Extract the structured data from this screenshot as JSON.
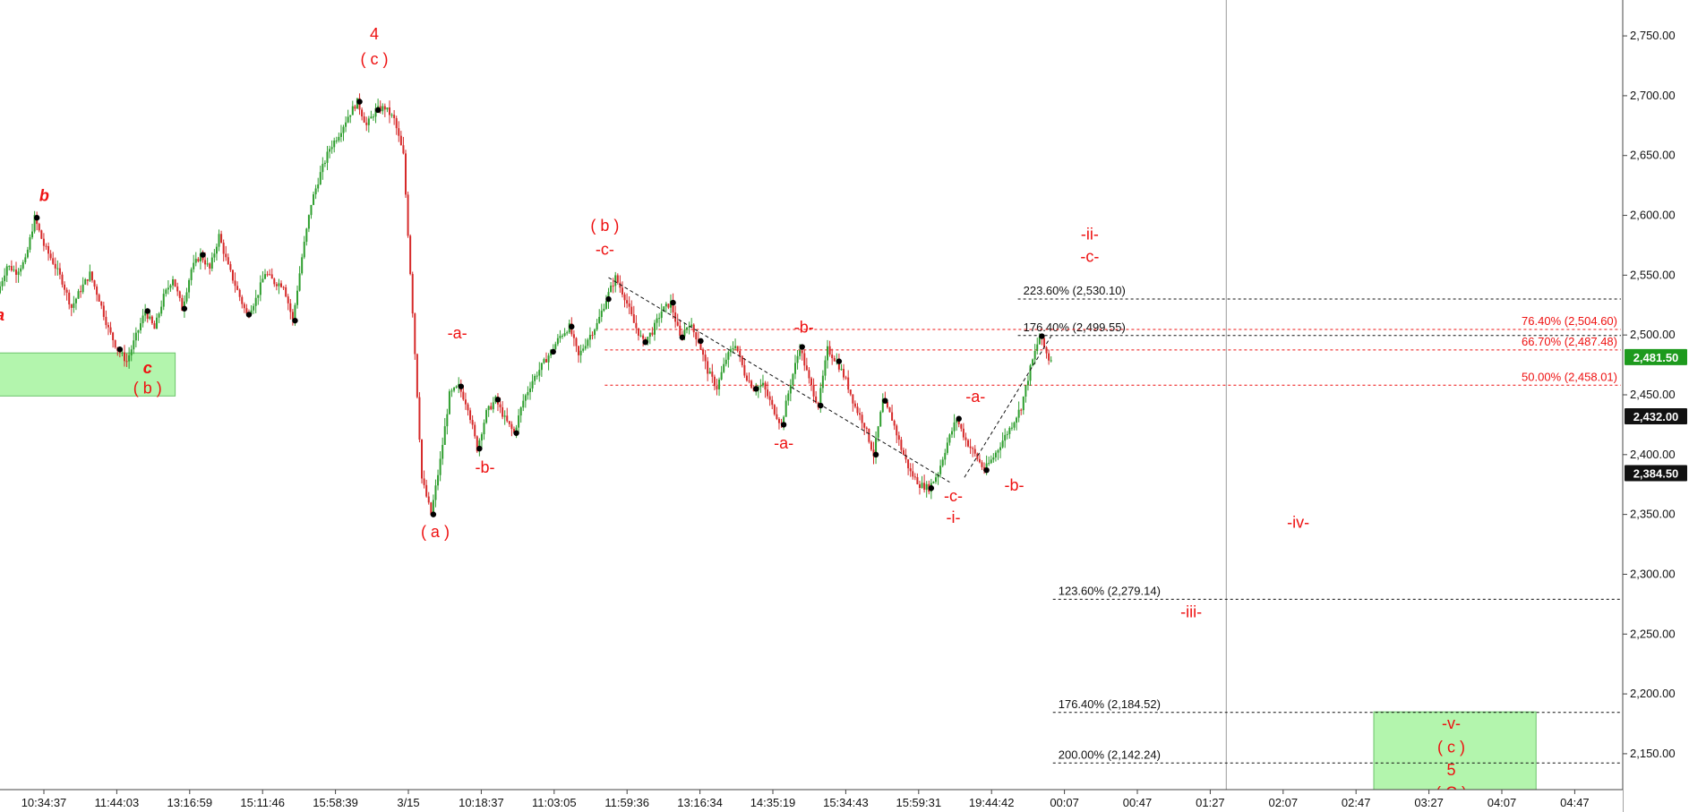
{
  "chart_data": {
    "type": "candlestick",
    "title": "",
    "xlabel": "",
    "ylabel": "",
    "ylim": [
      2120,
      2780
    ],
    "grid": false,
    "colors": {
      "up": "#2e9e2e",
      "down": "#d62a2a",
      "wave_label": "#ee1111",
      "fib_red": "#ee1111",
      "fib_black": "#111111",
      "zone": "#b3f5ad"
    },
    "x_tick_labels": [
      "10:34:37",
      "11:44:03",
      "13:16:59",
      "15:11:46",
      "15:58:39",
      "3/15",
      "10:18:37",
      "11:03:05",
      "11:59:36",
      "13:16:34",
      "14:35:19",
      "15:34:43",
      "15:59:31",
      "19:44:42",
      "00:07",
      "00:47",
      "01:27",
      "02:07",
      "02:47",
      "03:27",
      "04:07",
      "04:47"
    ],
    "y_ticks": [
      {
        "value": 2150,
        "label": "2,150.00"
      },
      {
        "value": 2200,
        "label": "2,200.00"
      },
      {
        "value": 2250,
        "label": "2,250.00"
      },
      {
        "value": 2300,
        "label": "2,300.00"
      },
      {
        "value": 2350,
        "label": "2,350.00"
      },
      {
        "value": 2400,
        "label": "2,400.00"
      },
      {
        "value": 2450,
        "label": "2,450.00"
      },
      {
        "value": 2500,
        "label": "2,500.00"
      },
      {
        "value": 2550,
        "label": "2,550.00"
      },
      {
        "value": 2600,
        "label": "2,600.00"
      },
      {
        "value": 2650,
        "label": "2,650.00"
      },
      {
        "value": 2700,
        "label": "2,700.00"
      },
      {
        "value": 2750,
        "label": "2,750.00"
      }
    ],
    "price_tags": [
      {
        "value": 2481.5,
        "label": "2,481.50",
        "color": "#1d9a1d"
      },
      {
        "value": 2432.0,
        "label": "2,432.00",
        "color": "#111111"
      },
      {
        "value": 2384.5,
        "label": "2,384.50",
        "color": "#111111"
      }
    ],
    "price_path": [
      [
        0,
        2535
      ],
      [
        0.5,
        2558
      ],
      [
        1,
        2553
      ],
      [
        1.5,
        2562
      ],
      [
        2,
        2598
      ],
      [
        2.5,
        2575
      ],
      [
        3,
        2561
      ],
      [
        3.5,
        2545
      ],
      [
        4,
        2523
      ],
      [
        4.5,
        2538
      ],
      [
        5,
        2551
      ],
      [
        5.5,
        2530
      ],
      [
        6,
        2505
      ],
      [
        6.5,
        2488
      ],
      [
        7,
        2478
      ],
      [
        7.5,
        2499
      ],
      [
        8,
        2520
      ],
      [
        8.5,
        2505
      ],
      [
        9,
        2532
      ],
      [
        9.5,
        2548
      ],
      [
        10,
        2522
      ],
      [
        10.5,
        2555
      ],
      [
        11,
        2567
      ],
      [
        11.5,
        2555
      ],
      [
        12,
        2583
      ],
      [
        12.5,
        2557
      ],
      [
        13,
        2537
      ],
      [
        13.5,
        2517
      ],
      [
        14,
        2530
      ],
      [
        14.5,
        2552
      ],
      [
        15,
        2544
      ],
      [
        15.5,
        2542
      ],
      [
        16,
        2512
      ],
      [
        16.5,
        2565
      ],
      [
        17,
        2610
      ],
      [
        17.5,
        2635
      ],
      [
        18,
        2656
      ],
      [
        18.5,
        2668
      ],
      [
        19,
        2683
      ],
      [
        19.5,
        2695
      ],
      [
        20,
        2675
      ],
      [
        20.5,
        2688
      ],
      [
        21,
        2690
      ],
      [
        21.5,
        2680
      ],
      [
        22,
        2650
      ],
      [
        22.5,
        2520
      ],
      [
        23,
        2380
      ],
      [
        23.5,
        2350
      ],
      [
        24,
        2395
      ],
      [
        24.5,
        2450
      ],
      [
        25,
        2457
      ],
      [
        25.5,
        2440
      ],
      [
        26,
        2405
      ],
      [
        26.5,
        2435
      ],
      [
        27,
        2446
      ],
      [
        27.5,
        2430
      ],
      [
        28,
        2418
      ],
      [
        28.5,
        2445
      ],
      [
        29,
        2462
      ],
      [
        29.5,
        2474
      ],
      [
        30,
        2486
      ],
      [
        30.5,
        2499
      ],
      [
        31,
        2507
      ],
      [
        31.5,
        2482
      ],
      [
        32,
        2497
      ],
      [
        32.5,
        2509
      ],
      [
        33,
        2530
      ],
      [
        33.5,
        2548
      ],
      [
        34,
        2532
      ],
      [
        34.5,
        2510
      ],
      [
        35,
        2494
      ],
      [
        35.5,
        2503
      ],
      [
        36,
        2520
      ],
      [
        36.5,
        2527
      ],
      [
        37,
        2498
      ],
      [
        37.5,
        2510
      ],
      [
        38,
        2495
      ],
      [
        38.5,
        2470
      ],
      [
        39,
        2456
      ],
      [
        39.5,
        2480
      ],
      [
        40,
        2493
      ],
      [
        40.5,
        2468
      ],
      [
        41,
        2455
      ],
      [
        41.5,
        2458
      ],
      [
        42,
        2440
      ],
      [
        42.5,
        2425
      ],
      [
        43,
        2460
      ],
      [
        43.5,
        2490
      ],
      [
        44,
        2462
      ],
      [
        44.5,
        2441
      ],
      [
        45,
        2488
      ],
      [
        45.5,
        2478
      ],
      [
        46,
        2462
      ],
      [
        46.5,
        2440
      ],
      [
        47,
        2425
      ],
      [
        47.5,
        2400
      ],
      [
        48,
        2445
      ],
      [
        48.5,
        2430
      ],
      [
        49,
        2405
      ],
      [
        49.5,
        2385
      ],
      [
        50,
        2375
      ],
      [
        50.5,
        2372
      ],
      [
        51,
        2385
      ],
      [
        51.5,
        2410
      ],
      [
        52,
        2430
      ],
      [
        52.5,
        2412
      ],
      [
        53,
        2400
      ],
      [
        53.5,
        2387
      ],
      [
        54,
        2398
      ],
      [
        54.5,
        2412
      ],
      [
        55,
        2425
      ],
      [
        55.5,
        2440
      ],
      [
        56,
        2472
      ],
      [
        56.5,
        2499
      ],
      [
        57,
        2480
      ]
    ],
    "wave_labels": [
      {
        "text": "a",
        "x": 0,
        "y": 2512,
        "style": "italic"
      },
      {
        "text": "b",
        "x": 2.4,
        "y": 2612,
        "style": "italic"
      },
      {
        "text": "c",
        "x": 8,
        "y": 2468,
        "style": "italic"
      },
      {
        "text": "( b )",
        "x": 8,
        "y": 2451,
        "style": "normal"
      },
      {
        "text": "4",
        "x": 20.3,
        "y": 2747,
        "style": "normal"
      },
      {
        "text": "( c )",
        "x": 20.3,
        "y": 2726,
        "style": "normal"
      },
      {
        "text": "-a-",
        "x": 24.8,
        "y": 2497,
        "style": "normal"
      },
      {
        "text": "-b-",
        "x": 26.3,
        "y": 2385,
        "style": "normal"
      },
      {
        "text": "( a )",
        "x": 23.6,
        "y": 2331,
        "style": "normal"
      },
      {
        "text": "( b )",
        "x": 32.8,
        "y": 2587,
        "style": "normal"
      },
      {
        "text": "-c-",
        "x": 32.8,
        "y": 2567,
        "style": "normal"
      },
      {
        "text": "-b-",
        "x": 43.6,
        "y": 2502,
        "style": "normal"
      },
      {
        "text": "-a-",
        "x": 42.5,
        "y": 2405,
        "style": "normal"
      },
      {
        "text": "-c-",
        "x": 51.7,
        "y": 2361,
        "style": "normal"
      },
      {
        "text": "-i-",
        "x": 51.7,
        "y": 2343,
        "style": "normal"
      },
      {
        "text": "-a-",
        "x": 52.9,
        "y": 2444,
        "style": "normal"
      },
      {
        "text": "-b-",
        "x": 55,
        "y": 2370,
        "style": "normal"
      },
      {
        "text": "-ii-",
        "x": 59.1,
        "y": 2580,
        "style": "normal"
      },
      {
        "text": "-c-",
        "x": 59.1,
        "y": 2561,
        "style": "normal"
      },
      {
        "text": "-iv-",
        "x": 70.4,
        "y": 2339,
        "style": "normal"
      },
      {
        "text": "-iii-",
        "x": 64.6,
        "y": 2264,
        "style": "normal"
      },
      {
        "text": "-v-",
        "x": 78.7,
        "y": 2171,
        "style": "normal"
      },
      {
        "text": "( c )",
        "x": 78.7,
        "y": 2151,
        "style": "normal"
      },
      {
        "text": "5",
        "x": 78.7,
        "y": 2132,
        "style": "normal"
      },
      {
        "text": "( C )",
        "x": 78.7,
        "y": 2113,
        "style": "normal"
      }
    ],
    "fib_levels": [
      {
        "label": "223.60% (2,530.10)",
        "value": 2530.1,
        "x_start": 55.2,
        "color": "black",
        "label_side": "left"
      },
      {
        "label": "176.40% (2,499.55)",
        "value": 2499.55,
        "x_start": 55.2,
        "color": "black",
        "label_side": "left"
      },
      {
        "label": "76.40% (2,504.60)",
        "value": 2504.6,
        "x_start": 32.8,
        "color": "red",
        "label_side": "right"
      },
      {
        "label": "66.70% (2,487.48)",
        "value": 2487.48,
        "x_start": 32.8,
        "color": "red",
        "label_side": "right"
      },
      {
        "label": "50.00% (2,458.01)",
        "value": 2458.01,
        "x_start": 32.8,
        "color": "red",
        "label_side": "right"
      },
      {
        "label": "123.60% (2,279.14)",
        "value": 2279.14,
        "x_start": 57.1,
        "color": "black",
        "label_side": "left"
      },
      {
        "label": "176.40% (2,184.52)",
        "value": 2184.52,
        "x_start": 57.1,
        "color": "black",
        "label_side": "left"
      },
      {
        "label": "200.00% (2,142.24)",
        "value": 2142.24,
        "x_start": 57.1,
        "color": "black",
        "label_side": "left"
      }
    ],
    "zones": [
      {
        "x1": -0.5,
        "x2": 9.5,
        "y1": 2449,
        "y2": 2485
      },
      {
        "x1": 74.5,
        "x2": 83.3,
        "y1": 2119,
        "y2": 2185
      }
    ],
    "trend_lines": [
      [
        [
          33,
          2548
        ],
        [
          51.5,
          2377
        ]
      ],
      [
        [
          52.3,
          2381
        ],
        [
          57,
          2499
        ]
      ]
    ],
    "session_divider_x": 66.5
  }
}
